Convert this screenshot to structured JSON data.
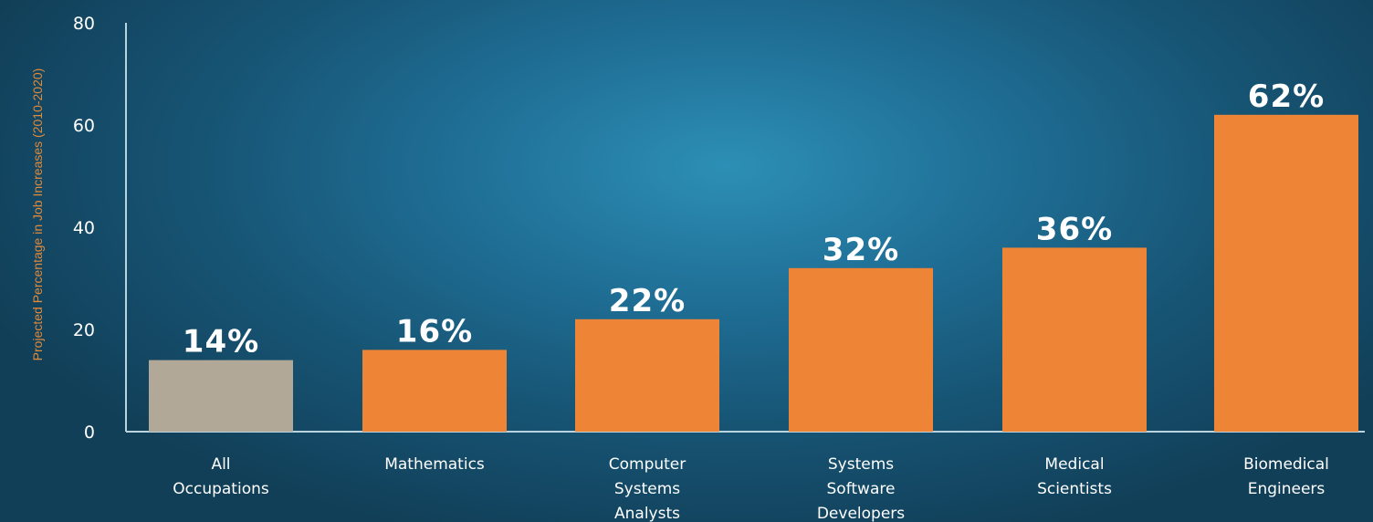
{
  "chart_data": {
    "type": "bar",
    "categories": [
      [
        "All",
        "Occupations"
      ],
      [
        "Mathematics"
      ],
      [
        "Computer",
        "Systems",
        "Analysts"
      ],
      [
        "Systems",
        "Software",
        "Developers"
      ],
      [
        "Medical",
        "Scientists"
      ],
      [
        "Biomedical",
        "Engineers"
      ]
    ],
    "values": [
      14,
      16,
      22,
      32,
      36,
      62
    ],
    "data_labels": [
      "14%",
      "16%",
      "22%",
      "32%",
      "36%",
      "62%"
    ],
    "bar_colors": [
      "#b2a898",
      "#ee8435",
      "#ee8435",
      "#ee8435",
      "#ee8435",
      "#ee8435"
    ],
    "ylabel": "Projected Percentage in Job Increases (2010-2020)",
    "ylabel_color": "#e08a3c",
    "ylim": [
      0,
      80
    ],
    "yticks": [
      0,
      20,
      40,
      60,
      80
    ],
    "axis_color": "#b9d3df",
    "grid": false,
    "legend": "none"
  }
}
